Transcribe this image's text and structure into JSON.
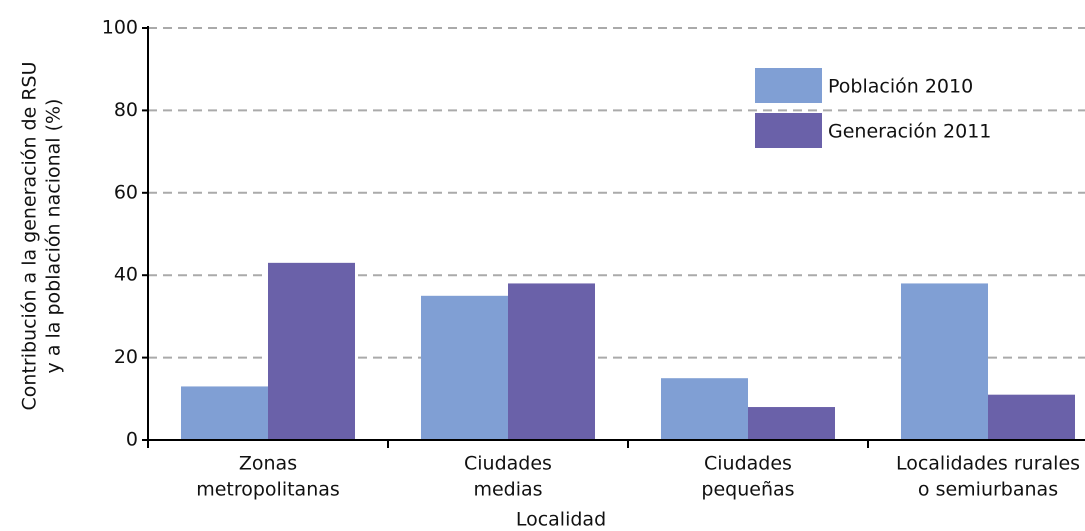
{
  "chart_data": {
    "type": "bar",
    "ylabel": [
      "Contribución a la generación de RSU",
      "y a la población nacional (%)"
    ],
    "xlabel": "Localidad",
    "categories": [
      [
        "Zonas",
        "metropolitanas"
      ],
      [
        "Ciudades",
        "medias"
      ],
      [
        "Ciudades",
        "pequeñas"
      ],
      [
        "Localidades rurales",
        "o semiurbanas"
      ]
    ],
    "series": [
      {
        "name": "Población 2010",
        "color": "#809fd4",
        "values": [
          13,
          35,
          15,
          38
        ]
      },
      {
        "name": "Generación 2011",
        "color": "#6a61a9",
        "values": [
          43,
          38,
          8,
          11
        ]
      }
    ],
    "ylim": [
      0,
      100
    ],
    "yticks": [
      0,
      20,
      40,
      60,
      80,
      100
    ],
    "grid": true
  }
}
